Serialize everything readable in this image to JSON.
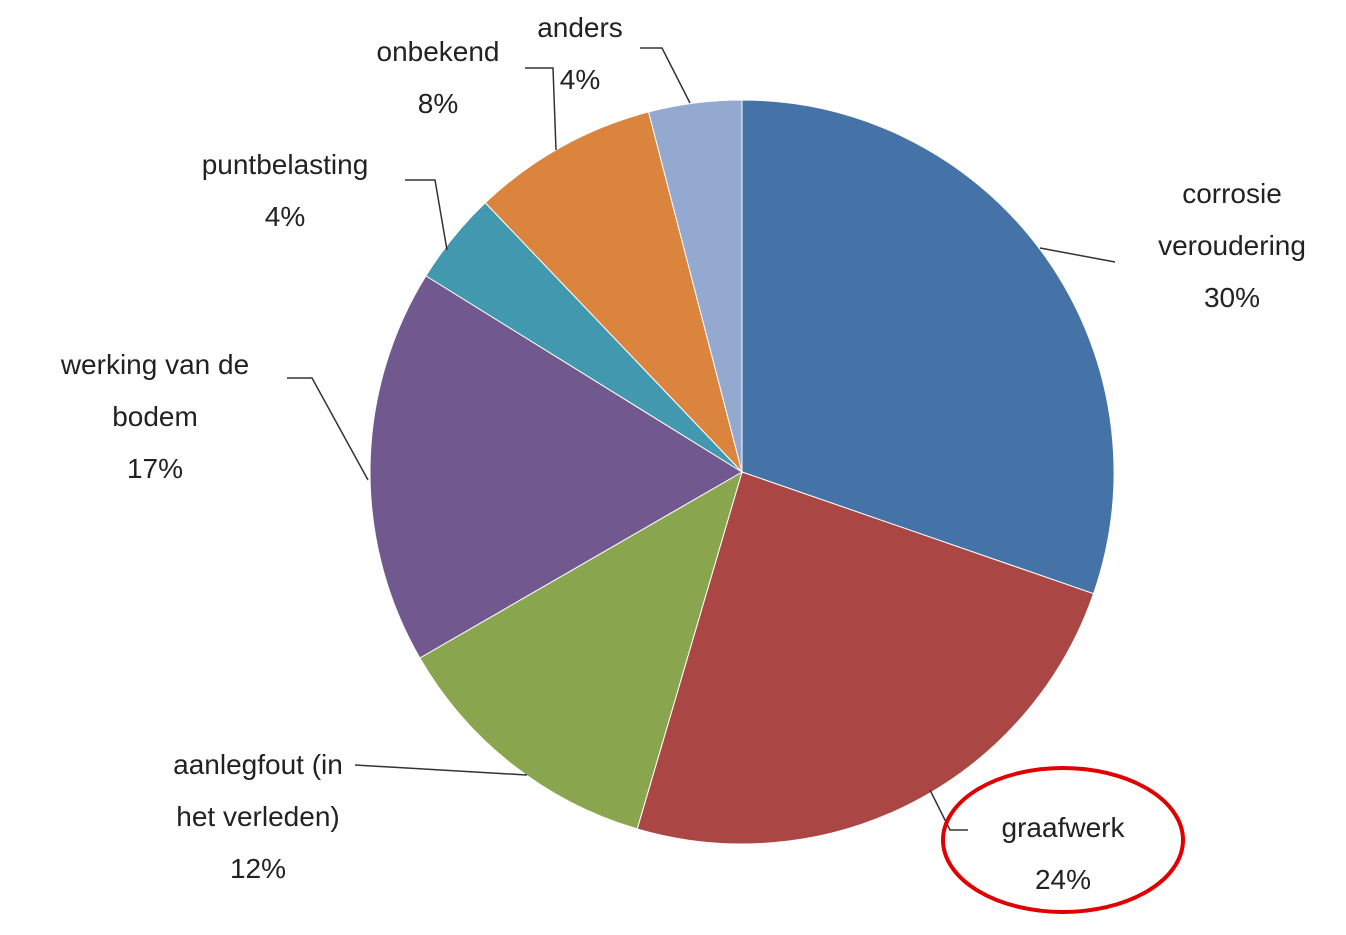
{
  "chart_data": {
    "type": "pie",
    "categories": [
      "corrosie veroudering",
      "graafwerk",
      "aanlegfout (in het verleden)",
      "werking van de bodem",
      "puntbelasting",
      "onbekend",
      "anders"
    ],
    "values": [
      30,
      24,
      12,
      17,
      4,
      8,
      4
    ],
    "value_labels": [
      "30%",
      "24%",
      "12%",
      "17%",
      "4%",
      "8%",
      "4%"
    ],
    "colors": [
      "#4572a7",
      "#aa4643",
      "#89a54e",
      "#71588f",
      "#4198af",
      "#db843d",
      "#93a9cf"
    ]
  }
}
